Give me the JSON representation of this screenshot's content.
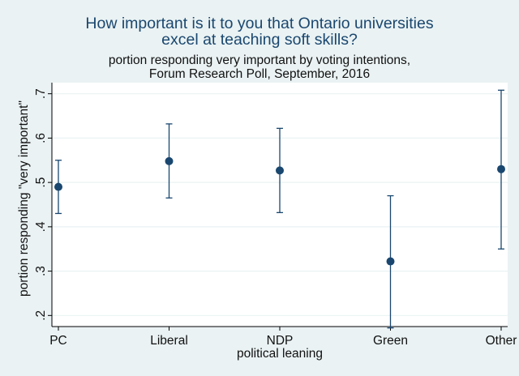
{
  "chart_data": {
    "type": "scatter",
    "subtype": "point-with-error-bars",
    "title_lines": [
      "How important is it to you that Ontario universities",
      "excel at teaching soft skills?"
    ],
    "subtitle_lines": [
      "portion responding very important by voting intentions,",
      "Forum Research Poll, September, 2016"
    ],
    "xlabel": "political leaning",
    "ylabel": "portion responding \"very important\"",
    "categories": [
      "PC",
      "Liberal",
      "NDP",
      "Green",
      "Other"
    ],
    "values": [
      0.49,
      0.548,
      0.527,
      0.322,
      0.53
    ],
    "lower": [
      0.43,
      0.465,
      0.432,
      0.172,
      0.35
    ],
    "upper": [
      0.55,
      0.632,
      0.622,
      0.47,
      0.708
    ],
    "ylim": [
      0.175,
      0.725
    ],
    "yticks": [
      0.2,
      0.3,
      0.4,
      0.5,
      0.6,
      0.7
    ],
    "ytick_labels": [
      ".2",
      ".3",
      ".4",
      ".5",
      ".6",
      ".7"
    ],
    "grid": "horizontal",
    "colors": {
      "background": "#eaf2f3",
      "plot": "#ffffff",
      "marker": "#1a476f",
      "grid": "#eaf2f3",
      "title": "#1a476f"
    }
  }
}
